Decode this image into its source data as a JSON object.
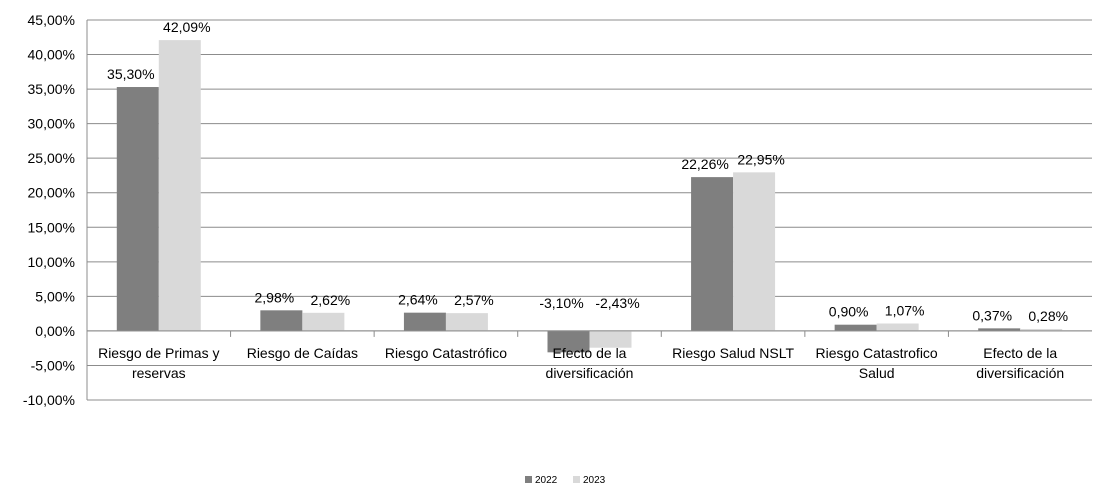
{
  "chart_data": {
    "type": "bar",
    "categories": [
      [
        "Riesgo de Primas y",
        "reservas"
      ],
      [
        "Riesgo de Caídas"
      ],
      [
        "Riesgo Catastrófico"
      ],
      [
        "Efecto de la",
        "diversificación"
      ],
      [
        "Riesgo Salud NSLT"
      ],
      [
        "Riesgo Catastrofico",
        "Salud"
      ],
      [
        "Efecto de la",
        "diversificación"
      ]
    ],
    "series": [
      {
        "name": "2022",
        "color": "#7f7f7f",
        "values": [
          35.3,
          2.98,
          2.64,
          -3.1,
          22.26,
          0.9,
          0.37
        ],
        "labels": [
          "35,30%",
          "2,98%",
          "2,64%",
          "-3,10%",
          "22,26%",
          "0,90%",
          "0,37%"
        ]
      },
      {
        "name": "2023",
        "color": "#d9d9d9",
        "values": [
          42.09,
          2.62,
          2.57,
          -2.43,
          22.95,
          1.07,
          0.28
        ],
        "labels": [
          "42,09%",
          "2,62%",
          "2,57%",
          "-2,43%",
          "22,95%",
          "1,07%",
          "0,28%"
        ]
      }
    ],
    "y_ticks": [
      "45,00%",
      "40,00%",
      "35,00%",
      "30,00%",
      "25,00%",
      "20,00%",
      "15,00%",
      "10,00%",
      "5,00%",
      "0,00%",
      "-5,00%",
      "-10,00%"
    ],
    "ylim": [
      -10,
      45
    ],
    "grid": true,
    "legend_position": "bottom",
    "title": "",
    "xlabel": "",
    "ylabel": ""
  }
}
